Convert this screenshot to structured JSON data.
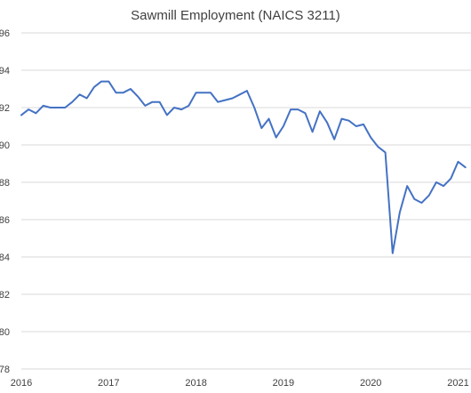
{
  "chart_data": {
    "type": "line",
    "title": "Sawmill Employment (NAICS 3211)",
    "xlabel": "",
    "ylabel": "",
    "y_tick_labels": [
      "78",
      "80",
      "82",
      "84",
      "86",
      "88",
      "90",
      "92",
      "94",
      "96"
    ],
    "x_tick_labels": [
      "2016",
      "2017",
      "2018",
      "2019",
      "2020",
      "2021"
    ],
    "ylim": [
      78,
      96
    ],
    "xlim": [
      2016,
      2021.1
    ],
    "grid": true,
    "legend": "none",
    "color": "#4472c4",
    "series": [
      {
        "x": [
          2016.0,
          2016.083,
          2016.167,
          2016.25,
          2016.333,
          2016.417,
          2016.5,
          2016.583,
          2016.667,
          2016.75,
          2016.833,
          2016.917,
          2017.0,
          2017.083,
          2017.167,
          2017.25,
          2017.333,
          2017.417,
          2017.5,
          2017.583,
          2017.667,
          2017.75,
          2017.833,
          2017.917,
          2018.0,
          2018.083,
          2018.167,
          2018.25,
          2018.333,
          2018.417,
          2018.5,
          2018.583,
          2018.667,
          2018.75,
          2018.833,
          2018.917,
          2019.0,
          2019.083,
          2019.167,
          2019.25,
          2019.333,
          2019.417,
          2019.5,
          2019.583,
          2019.667,
          2019.75,
          2019.833,
          2019.917,
          2020.0,
          2020.083,
          2020.167,
          2020.25,
          2020.333,
          2020.417,
          2020.5,
          2020.583,
          2020.667,
          2020.75,
          2020.833,
          2020.917,
          2021.0,
          2021.083
        ],
        "values": [
          91.6,
          91.9,
          91.7,
          92.1,
          92.0,
          92.0,
          92.0,
          92.3,
          92.7,
          92.5,
          93.1,
          93.4,
          93.4,
          92.8,
          92.8,
          93.0,
          92.6,
          92.1,
          92.3,
          92.3,
          91.6,
          92.0,
          91.9,
          92.1,
          92.8,
          92.8,
          92.8,
          92.3,
          92.4,
          92.5,
          92.7,
          92.9,
          92.0,
          90.9,
          91.4,
          90.4,
          91.0,
          91.9,
          91.9,
          91.7,
          90.7,
          91.8,
          91.2,
          90.3,
          91.4,
          91.3,
          91.0,
          91.1,
          90.4,
          89.9,
          89.6,
          84.2,
          86.4,
          87.8,
          87.1,
          86.9,
          87.3,
          88.0,
          87.8,
          88.2,
          89.1,
          88.8
        ]
      }
    ]
  }
}
